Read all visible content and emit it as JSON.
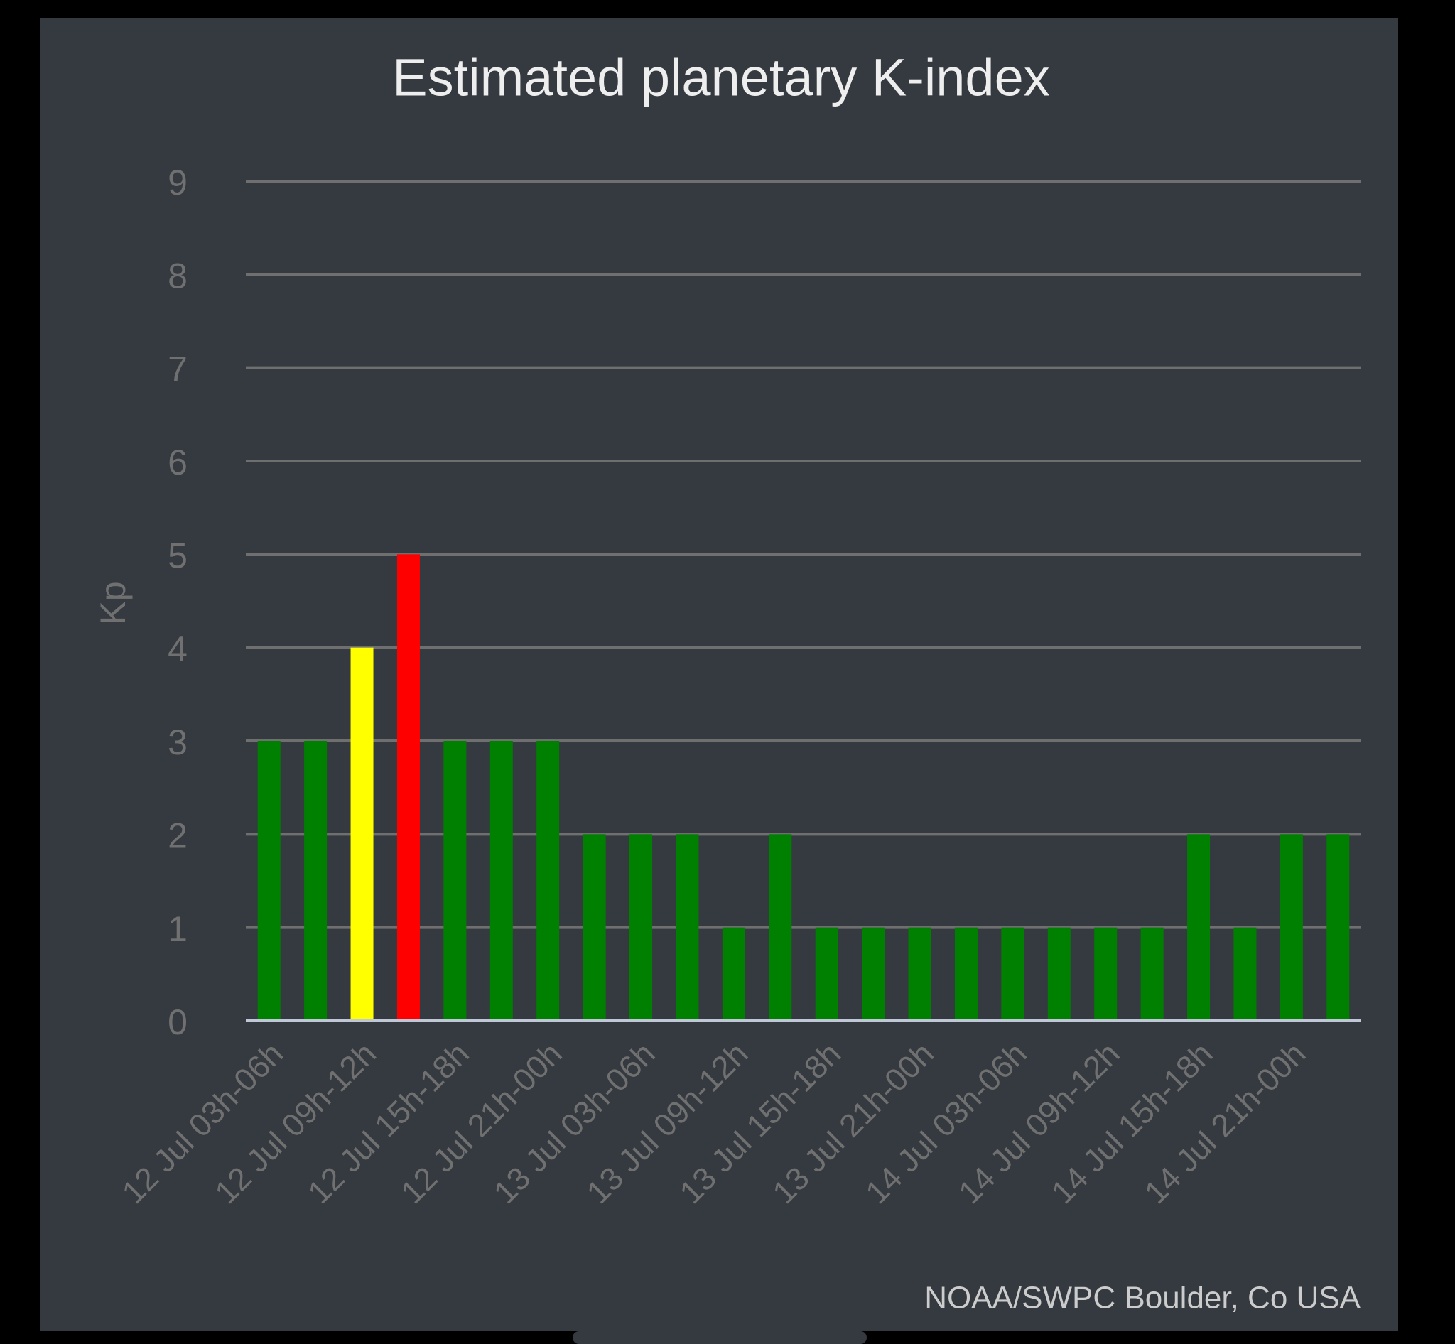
{
  "chart_data": {
    "type": "bar",
    "title": "Estimated planetary K-index",
    "y_label": "Kp",
    "source": "NOAA/SWPC Boulder, Co USA",
    "categories": [
      "12 Jul 03h-06h",
      null,
      "12 Jul 09h-12h",
      null,
      "12 Jul 15h-18h",
      null,
      "12 Jul 21h-00h",
      null,
      "13 Jul 03h-06h",
      null,
      "13 Jul 09h-12h",
      null,
      "13 Jul 15h-18h",
      null,
      "13 Jul 21h-00h",
      null,
      "14 Jul 03h-06h",
      null,
      "14 Jul 09h-12h",
      null,
      "14 Jul 15h-18h",
      null,
      "14 Jul 21h-00h",
      null
    ],
    "values": [
      3,
      3,
      4,
      5,
      3,
      3,
      3,
      2,
      2,
      2,
      1,
      2,
      1,
      1,
      1,
      1,
      1,
      1,
      1,
      1,
      2,
      1,
      2,
      2
    ],
    "colors": [
      "#008000",
      "#008000",
      "#ffff00",
      "#ff0000",
      "#008000",
      "#008000",
      "#008000",
      "#008000",
      "#008000",
      "#008000",
      "#008000",
      "#008000",
      "#008000",
      "#008000",
      "#008000",
      "#008000",
      "#008000",
      "#008000",
      "#008000",
      "#008000",
      "#008000",
      "#008000",
      "#008000",
      "#008000"
    ],
    "ylim": [
      0,
      9
    ],
    "yticks": [
      0,
      1,
      2,
      3,
      4,
      5,
      6,
      7,
      8,
      9
    ],
    "grid": true
  }
}
